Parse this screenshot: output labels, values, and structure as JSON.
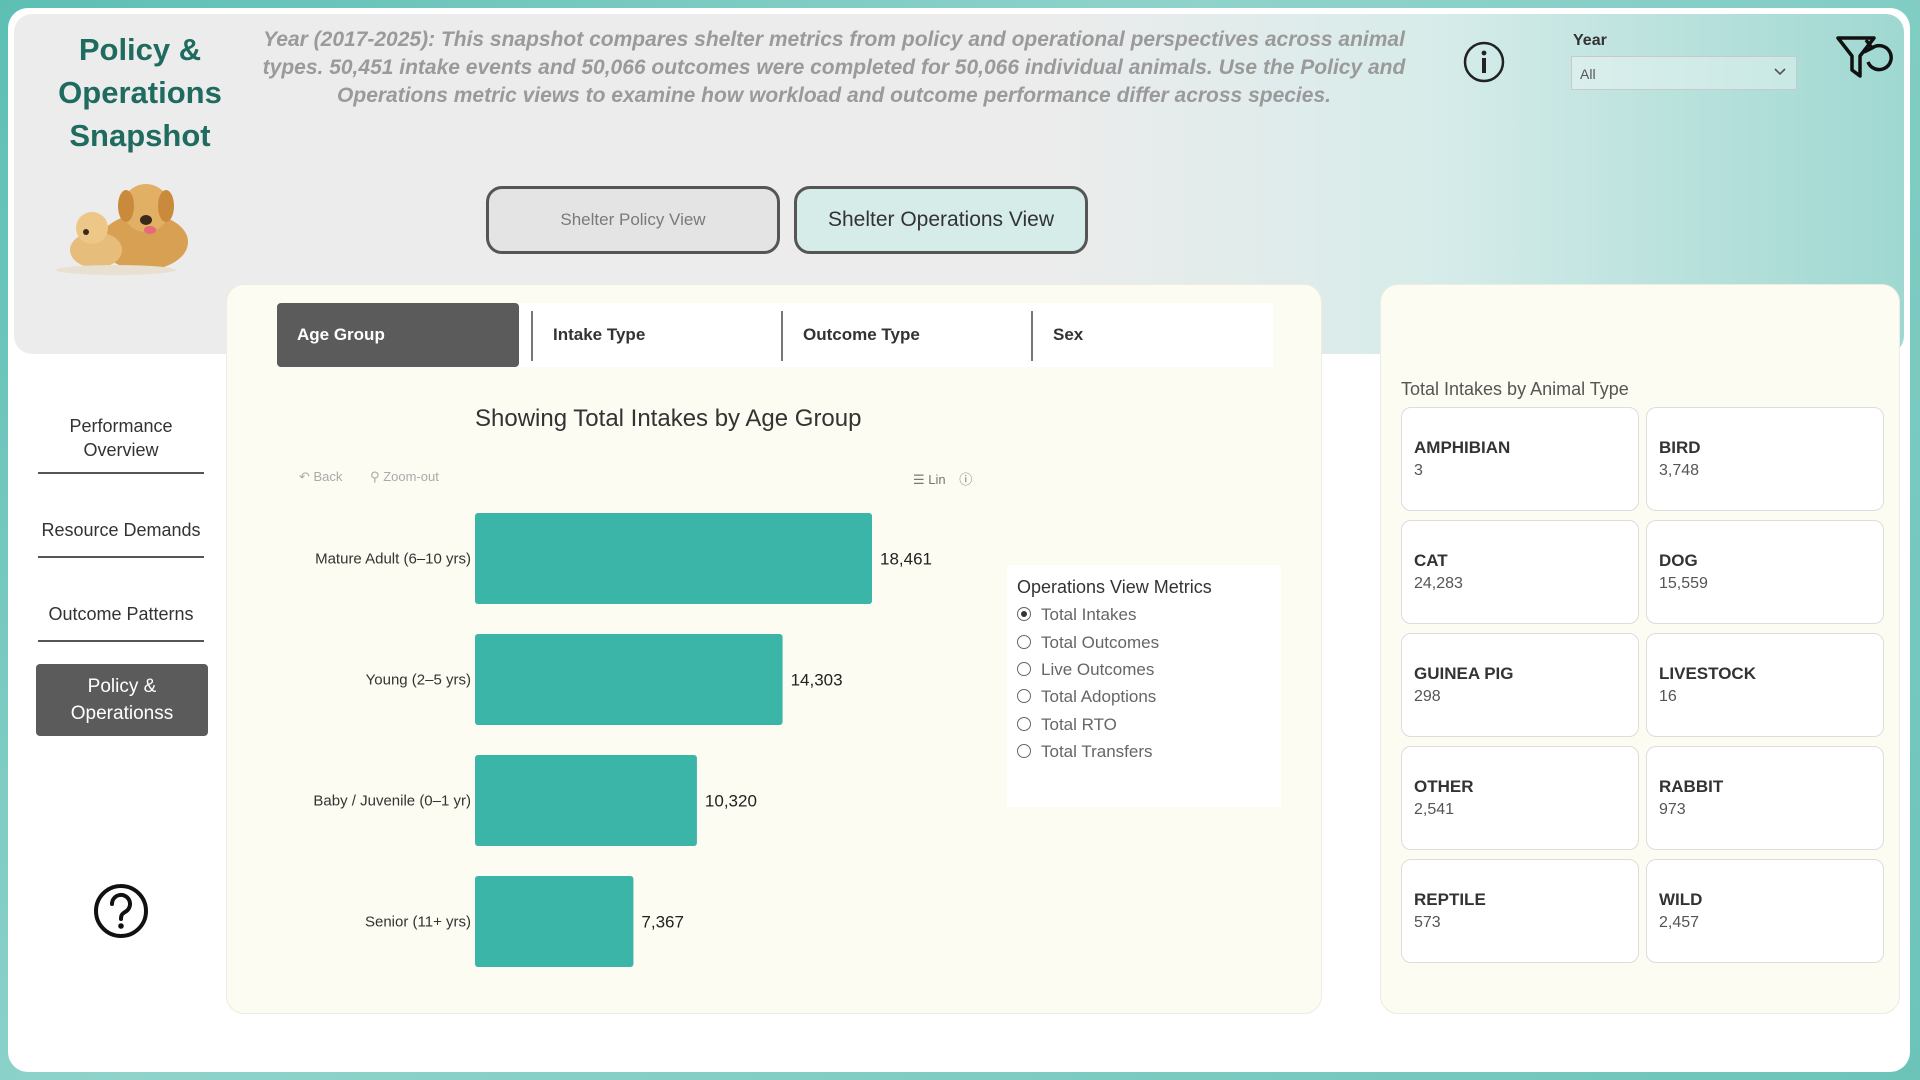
{
  "header": {
    "title": "Policy & Operations Snapshot",
    "subtitle": "Year (2017-2025): This snapshot compares shelter metrics from policy and operational perspectives across animal types. 50,451 intake events and 50,066 outcomes were completed for 50,066 individual animals. Use the Policy and Operations metric views to examine how workload and outcome performance differ across species.",
    "year_label": "Year",
    "year_value": "All"
  },
  "view_buttons": {
    "policy": "Shelter Policy View",
    "operations": "Shelter Operations View"
  },
  "tabs": [
    {
      "label": "Age Group",
      "active": true
    },
    {
      "label": "Intake Type",
      "active": false
    },
    {
      "label": "Outcome Type",
      "active": false
    },
    {
      "label": "Sex",
      "active": false
    }
  ],
  "chart_toolbar": {
    "back": "Back",
    "zoom_out": "Zoom-out",
    "lin": "Lin"
  },
  "radio_panel": {
    "title": "Operations View Metrics",
    "options": [
      {
        "label": "Total Intakes",
        "selected": true
      },
      {
        "label": "Total Outcomes",
        "selected": false
      },
      {
        "label": "Live Outcomes",
        "selected": false
      },
      {
        "label": "Total Adoptions",
        "selected": false
      },
      {
        "label": "Total RTO",
        "selected": false
      },
      {
        "label": "Total Transfers",
        "selected": false
      }
    ]
  },
  "sidebar": {
    "items": [
      {
        "label": "Performance Overview"
      },
      {
        "label": "Resource Demands"
      },
      {
        "label": "Outcome Patterns"
      }
    ],
    "active_label": "Policy & Operationss"
  },
  "side_panel": {
    "title": "Total Intakes by Animal Type",
    "tiles": [
      {
        "name": "AMPHIBIAN",
        "value": "3"
      },
      {
        "name": "BIRD",
        "value": "3,748"
      },
      {
        "name": "CAT",
        "value": "24,283"
      },
      {
        "name": "DOG",
        "value": "15,559"
      },
      {
        "name": "GUINEA PIG",
        "value": "298"
      },
      {
        "name": "LIVESTOCK",
        "value": "16"
      },
      {
        "name": "OTHER",
        "value": "2,541"
      },
      {
        "name": "RABBIT",
        "value": "973"
      },
      {
        "name": "REPTILE",
        "value": "573"
      },
      {
        "name": "WILD",
        "value": "2,457"
      }
    ]
  },
  "colors": {
    "bar": "#3bb5a8",
    "accent": "#1f6b60",
    "active_tab": "#5b5b5b"
  },
  "chart_data": {
    "type": "bar",
    "orientation": "horizontal",
    "title": "Showing Total Intakes by Age Group",
    "categories": [
      "Mature Adult (6–10 yrs)",
      "Young (2–5 yrs)",
      "Baby / Juvenile (0–1 yr)",
      "Senior (11+ yrs)"
    ],
    "values": [
      18461,
      14303,
      10320,
      7367
    ],
    "value_labels": [
      "18,461",
      "14,303",
      "10,320",
      "7,367"
    ],
    "xlim": [
      0,
      18461
    ],
    "grid": false
  }
}
